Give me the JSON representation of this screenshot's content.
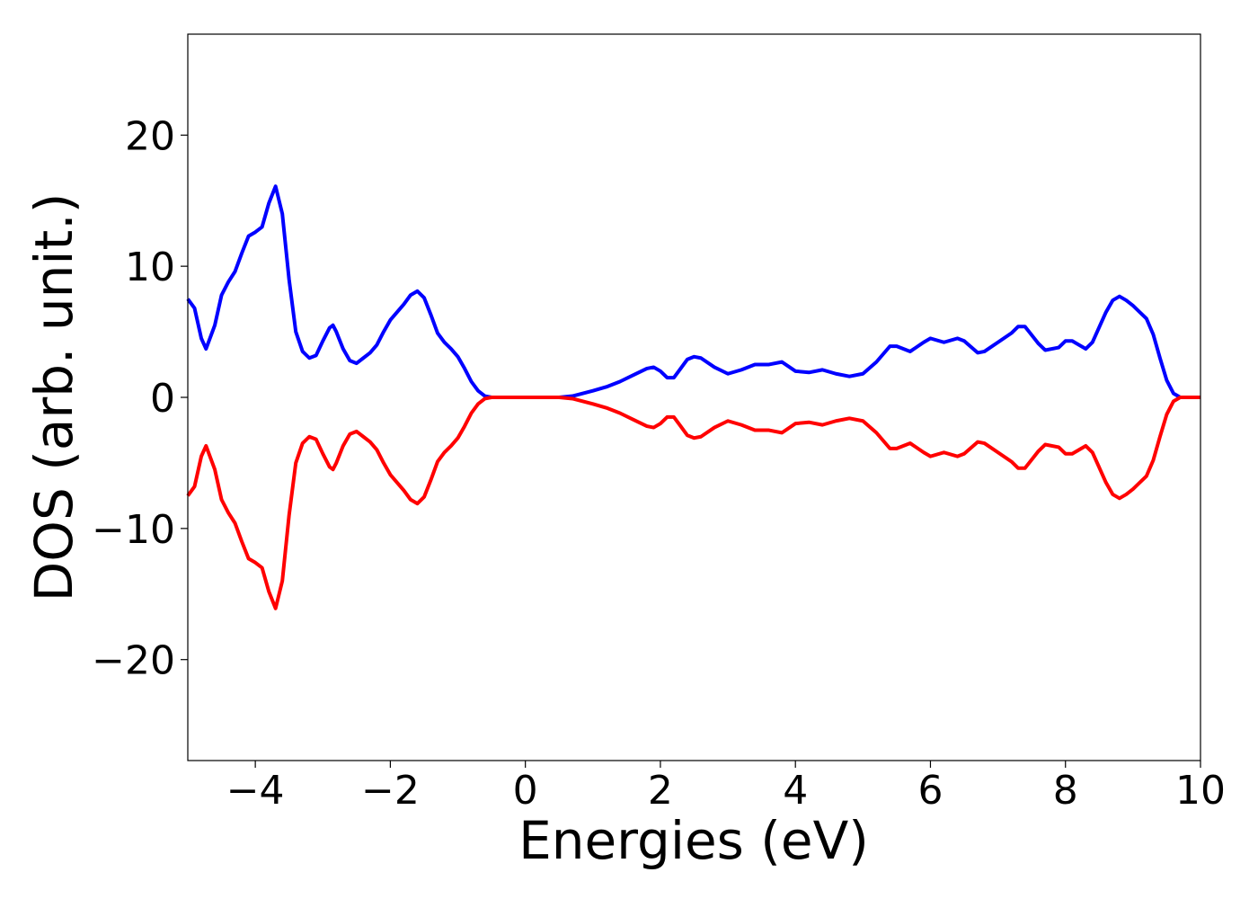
{
  "chart_data": {
    "type": "line",
    "xlabel": "Energies (eV)",
    "ylabel": "DOS (arb. unit.)",
    "x": [
      -5,
      -4.9,
      -4.8,
      -4.73,
      -4.6,
      -4.5,
      -4.4,
      -4.3,
      -4.2,
      -4.1,
      -4.0,
      -3.9,
      -3.8,
      -3.7,
      -3.6,
      -3.5,
      -3.4,
      -3.3,
      -3.2,
      -3.1,
      -3.0,
      -2.9,
      -2.85,
      -2.8,
      -2.7,
      -2.6,
      -2.5,
      -2.4,
      -2.3,
      -2.2,
      -2.1,
      -2.0,
      -1.9,
      -1.8,
      -1.7,
      -1.6,
      -1.5,
      -1.4,
      -1.3,
      -1.2,
      -1.1,
      -1.0,
      -0.9,
      -0.8,
      -0.7,
      -0.6,
      -0.5,
      0.5,
      0.7,
      1.0,
      1.2,
      1.4,
      1.6,
      1.8,
      1.9,
      2.0,
      2.1,
      2.2,
      2.3,
      2.4,
      2.5,
      2.6,
      2.8,
      3.0,
      3.2,
      3.4,
      3.6,
      3.8,
      4.0,
      4.2,
      4.4,
      4.6,
      4.8,
      5.0,
      5.2,
      5.4,
      5.5,
      5.7,
      5.9,
      6.0,
      6.2,
      6.4,
      6.5,
      6.7,
      6.8,
      7.0,
      7.2,
      7.3,
      7.4,
      7.6,
      7.7,
      7.9,
      8.0,
      8.1,
      8.3,
      8.4,
      8.6,
      8.7,
      8.8,
      8.9,
      9.0,
      9.2,
      9.3,
      9.4,
      9.5,
      9.6,
      9.7,
      10
    ],
    "series": [
      {
        "color": "#0000ff",
        "values": [
          7.5,
          6.8,
          4.5,
          3.7,
          5.5,
          7.8,
          8.8,
          9.6,
          11,
          12.3,
          12.6,
          13,
          14.8,
          16.1,
          14,
          9,
          5,
          3.5,
          3,
          3.2,
          4.3,
          5.3,
          5.5,
          5.0,
          3.7,
          2.8,
          2.6,
          3.0,
          3.4,
          4.0,
          5.0,
          5.9,
          6.5,
          7.1,
          7.8,
          8.1,
          7.6,
          6.3,
          4.9,
          4.2,
          3.7,
          3.1,
          2.2,
          1.2,
          0.5,
          0.1,
          0,
          0,
          0.1,
          0.5,
          0.8,
          1.2,
          1.7,
          2.2,
          2.3,
          2.0,
          1.5,
          1.5,
          2.2,
          2.9,
          3.1,
          3.0,
          2.3,
          1.8,
          2.1,
          2.5,
          2.5,
          2.7,
          2.0,
          1.9,
          2.1,
          1.8,
          1.6,
          1.8,
          2.7,
          3.9,
          3.9,
          3.5,
          4.2,
          4.5,
          4.2,
          4.5,
          4.3,
          3.4,
          3.5,
          4.2,
          4.9,
          5.4,
          5.4,
          4.1,
          3.6,
          3.8,
          4.3,
          4.3,
          3.7,
          4.2,
          6.5,
          7.4,
          7.7,
          7.4,
          7.0,
          6.0,
          4.8,
          3.0,
          1.3,
          0.3,
          0,
          0
        ]
      },
      {
        "color": "#ff0000",
        "values": [
          -7.5,
          -6.8,
          -4.5,
          -3.7,
          -5.5,
          -7.8,
          -8.8,
          -9.6,
          -11,
          -12.3,
          -12.6,
          -13,
          -14.8,
          -16.1,
          -14,
          -9,
          -5,
          -3.5,
          -3,
          -3.2,
          -4.3,
          -5.3,
          -5.5,
          -5.0,
          -3.7,
          -2.8,
          -2.6,
          -3.0,
          -3.4,
          -4.0,
          -5.0,
          -5.9,
          -6.5,
          -7.1,
          -7.8,
          -8.1,
          -7.6,
          -6.3,
          -4.9,
          -4.2,
          -3.7,
          -3.1,
          -2.2,
          -1.2,
          -0.5,
          -0.1,
          0,
          0,
          -0.1,
          -0.5,
          -0.8,
          -1.2,
          -1.7,
          -2.2,
          -2.3,
          -2.0,
          -1.5,
          -1.5,
          -2.2,
          -2.9,
          -3.1,
          -3.0,
          -2.3,
          -1.8,
          -2.1,
          -2.5,
          -2.5,
          -2.7,
          -2.0,
          -1.9,
          -2.1,
          -1.8,
          -1.6,
          -1.8,
          -2.7,
          -3.9,
          -3.9,
          -3.5,
          -4.2,
          -4.5,
          -4.2,
          -4.5,
          -4.3,
          -3.4,
          -3.5,
          -4.2,
          -4.9,
          -5.4,
          -5.4,
          -4.1,
          -3.6,
          -3.8,
          -4.3,
          -4.3,
          -3.7,
          -4.2,
          -6.5,
          -7.4,
          -7.7,
          -7.4,
          -7.0,
          -6.0,
          -4.8,
          -3.0,
          -1.3,
          -0.3,
          0,
          0
        ]
      }
    ],
    "xlim": [
      -5,
      10
    ],
    "xticks": [
      {
        "value": -4,
        "label": "−4"
      },
      {
        "value": -2,
        "label": "−2"
      },
      0,
      2,
      4,
      6,
      8,
      10
    ],
    "ylim": [
      -27.7,
      27.7
    ],
    "yticks": [
      {
        "value": -20,
        "label": "−20"
      },
      {
        "value": -10,
        "label": "−10"
      },
      0,
      10,
      20
    ]
  }
}
